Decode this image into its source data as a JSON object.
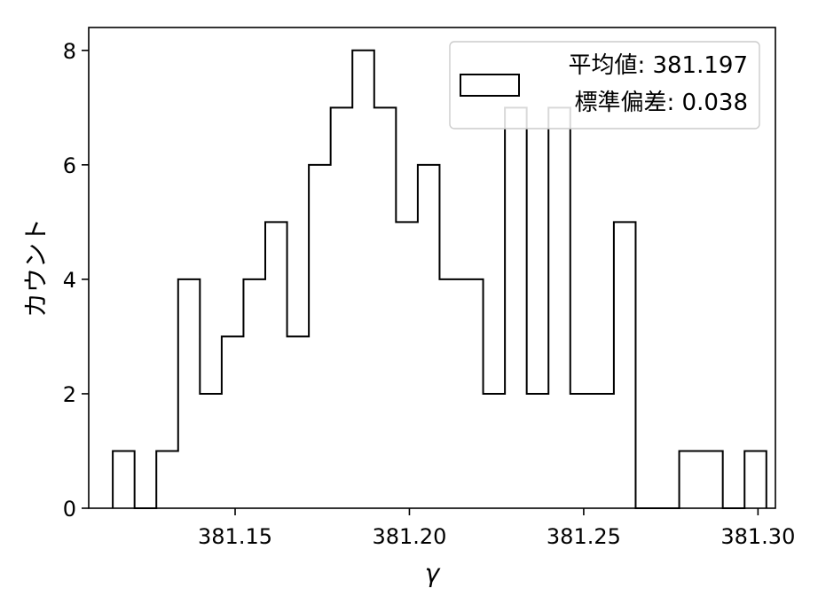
{
  "chart_data": {
    "type": "histogram",
    "xlabel": "γ",
    "ylabel": "カウント",
    "xlim": [
      381.108,
      381.305
    ],
    "ylim": [
      0,
      8.4
    ],
    "xticks": [
      "381.15",
      "381.20",
      "381.25",
      "381.30"
    ],
    "xtick_values": [
      381.15,
      381.2,
      381.25,
      381.3
    ],
    "yticks": [
      "0",
      "2",
      "4",
      "6",
      "8"
    ],
    "ytick_values": [
      0,
      2,
      4,
      6,
      8
    ],
    "bin_start": 381.1149,
    "bin_width": 0.00625,
    "counts": [
      1,
      0,
      1,
      4,
      2,
      3,
      4,
      5,
      3,
      6,
      7,
      8,
      7,
      5,
      6,
      4,
      4,
      2,
      7,
      2,
      7,
      2,
      2,
      5,
      0,
      0,
      1,
      1,
      0,
      1
    ],
    "histtype": "step",
    "grid": false,
    "legend": {
      "placement": "top-right",
      "lines": [
        "平均値: 381.197",
        "標準偏差: 0.038"
      ]
    }
  }
}
